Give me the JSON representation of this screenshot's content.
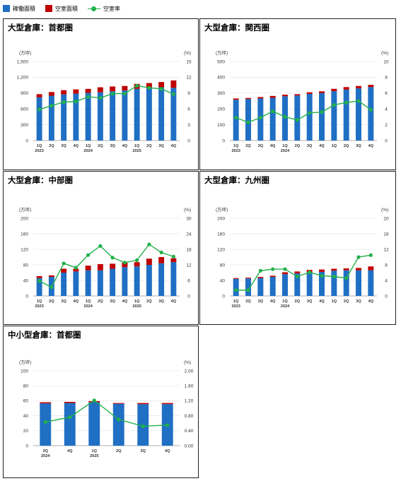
{
  "colors": {
    "occupied": "#1f6fc4",
    "vacant": "#c00000",
    "rate": "#22b04b"
  },
  "legend": {
    "occupied_label": "稼働面積",
    "vacant_label": "空室面積",
    "rate_label": "空室率"
  },
  "chart_data": [
    {
      "type": "bar",
      "title": "大型倉庫：首都圏",
      "ylabel": "(万坪)",
      "y2label": "(%)",
      "ylim": [
        0,
        1500
      ],
      "yticks": [
        "0",
        "300",
        "600",
        "900",
        "1,200",
        "1,500"
      ],
      "y2lim": [
        0,
        15
      ],
      "y2ticks": [
        "0",
        "3",
        "6",
        "9",
        "12",
        "15"
      ],
      "categories": [
        "1Q",
        "2Q",
        "3Q",
        "4Q",
        "1Q",
        "2Q",
        "3Q",
        "4Q",
        "1Q",
        "2Q",
        "3Q",
        "4Q"
      ],
      "year_labels": [
        {
          "index": 0,
          "label": "2023"
        },
        {
          "index": 4,
          "label": "2024"
        },
        {
          "index": 8,
          "label": "2025"
        }
      ],
      "series": [
        {
          "name": "稼働面積",
          "kind": "bar",
          "values": [
            820,
            850,
            875,
            890,
            905,
            915,
            935,
            950,
            980,
            990,
            1010,
            1000
          ]
        },
        {
          "name": "空室面積",
          "kind": "bar",
          "values": [
            60,
            70,
            80,
            80,
            75,
            95,
            90,
            85,
            95,
            100,
            100,
            140
          ]
        },
        {
          "name": "空室率",
          "kind": "line",
          "axis": "right",
          "values": [
            5.9,
            6.6,
            7.3,
            7.4,
            8.3,
            8.1,
            8.9,
            8.9,
            10.4,
            10.0,
            9.8,
            8.8
          ]
        }
      ]
    },
    {
      "type": "bar",
      "title": "大型倉庫：関西圏",
      "ylabel": "(万坪)",
      "y2label": "(%)",
      "ylim": [
        0,
        500
      ],
      "yticks": [
        "0",
        "100",
        "200",
        "300",
        "400",
        "500"
      ],
      "y2lim": [
        0,
        10
      ],
      "y2ticks": [
        "0",
        "2",
        "4",
        "6",
        "8",
        "10"
      ],
      "categories": [
        "1Q",
        "2Q",
        "3Q",
        "4Q",
        "1Q",
        "2Q",
        "3Q",
        "4Q",
        "1Q",
        "2Q",
        "3Q",
        "4Q"
      ],
      "year_labels": [
        {
          "index": 0,
          "label": "2023"
        },
        {
          "index": 4,
          "label": "2024"
        }
      ],
      "series": [
        {
          "name": "稼働面積",
          "kind": "bar",
          "values": [
            258,
            262,
            266,
            270,
            280,
            285,
            295,
            300,
            312,
            322,
            330,
            338
          ]
        },
        {
          "name": "空室面積",
          "kind": "bar",
          "values": [
            8,
            7,
            9,
            12,
            10,
            8,
            10,
            11,
            15,
            16,
            15,
            14
          ]
        },
        {
          "name": "空室率",
          "kind": "line",
          "axis": "right",
          "values": [
            2.9,
            2.3,
            2.9,
            3.7,
            3.0,
            2.6,
            3.5,
            3.6,
            4.5,
            4.8,
            5.0,
            3.9
          ]
        }
      ]
    },
    {
      "type": "bar",
      "title": "大型倉庫：中部圏",
      "ylabel": "(万坪)",
      "y2label": "(%)",
      "ylim": [
        0,
        200
      ],
      "yticks": [
        "0",
        "40",
        "80",
        "120",
        "160",
        "200"
      ],
      "y2lim": [
        0,
        30
      ],
      "y2ticks": [
        "0",
        "6",
        "12",
        "18",
        "24",
        "30"
      ],
      "categories": [
        "1Q",
        "2Q",
        "3Q",
        "4Q",
        "1Q",
        "2Q",
        "3Q",
        "4Q",
        "1Q",
        "2Q",
        "3Q",
        "4Q"
      ],
      "year_labels": [
        {
          "index": 0,
          "label": "2023"
        },
        {
          "index": 4,
          "label": "2024"
        },
        {
          "index": 8,
          "label": "2025"
        }
      ],
      "series": [
        {
          "name": "稼働面積",
          "kind": "bar",
          "values": [
            46,
            49,
            60,
            63,
            66,
            66,
            70,
            74,
            76,
            80,
            84,
            87
          ]
        },
        {
          "name": "空室面積",
          "kind": "bar",
          "values": [
            5,
            4,
            10,
            7,
            12,
            16,
            13,
            12,
            11,
            16,
            16,
            10
          ]
        },
        {
          "name": "空室率",
          "kind": "line",
          "axis": "right",
          "values": [
            5.8,
            3.4,
            12.6,
            10.9,
            15.8,
            19.3,
            14.8,
            12.9,
            13.8,
            19.9,
            16.8,
            15.2
          ]
        }
      ]
    },
    {
      "type": "bar",
      "title": "大型倉庫：九州圏",
      "ylabel": "(万坪)",
      "y2label": "(%)",
      "ylim": [
        0,
        200
      ],
      "yticks": [
        "0",
        "40",
        "80",
        "120",
        "160",
        "200"
      ],
      "y2lim": [
        0,
        20
      ],
      "y2ticks": [
        "0",
        "4",
        "8",
        "12",
        "16",
        "20"
      ],
      "categories": [
        "1Q",
        "2Q",
        "3Q",
        "4Q",
        "1Q",
        "2Q",
        "3Q",
        "4Q",
        "1Q",
        "2Q",
        "3Q",
        "4Q"
      ],
      "year_labels": [
        {
          "index": 0,
          "label": "2023"
        },
        {
          "index": 4,
          "label": "2024"
        }
      ],
      "series": [
        {
          "name": "稼働面積",
          "kind": "bar",
          "values": [
            44,
            45,
            46,
            49,
            56,
            58,
            61,
            62,
            65,
            66,
            66,
            66
          ]
        },
        {
          "name": "空室面積",
          "kind": "bar",
          "values": [
            2,
            2,
            3,
            3,
            5,
            5,
            6,
            6,
            5,
            5,
            6,
            10
          ]
        },
        {
          "name": "空室率",
          "kind": "line",
          "axis": "right",
          "values": [
            1.5,
            1.5,
            6.5,
            6.9,
            6.9,
            5.0,
            6.1,
            5.2,
            5.0,
            4.6,
            10.0,
            10.5
          ]
        }
      ]
    },
    {
      "type": "bar",
      "title": "中小型倉庫：首都圏",
      "ylabel": "(万坪)",
      "y2label": "(%)",
      "ylim": [
        0,
        100
      ],
      "yticks": [
        "0",
        "20",
        "40",
        "60",
        "80",
        "100"
      ],
      "y2lim": [
        0,
        2
      ],
      "y2ticks": [
        "0.00",
        "0.40",
        "0.80",
        "1.20",
        "1.60",
        "2.00"
      ],
      "categories": [
        "3Q",
        "4Q",
        "1Q",
        "2Q",
        "3Q",
        "4Q"
      ],
      "year_labels": [
        {
          "index": 0,
          "label": "2024"
        },
        {
          "index": 2,
          "label": "2025"
        }
      ],
      "series": [
        {
          "name": "稼働面積",
          "kind": "bar",
          "values": [
            56.5,
            57,
            58,
            56,
            55.5,
            55.5
          ]
        },
        {
          "name": "空室面積",
          "kind": "bar",
          "values": [
            1.5,
            1.5,
            1.5,
            1,
            1.5,
            1.5
          ]
        },
        {
          "name": "空室率",
          "kind": "line",
          "axis": "right",
          "values": [
            0.63,
            0.76,
            1.21,
            0.7,
            0.52,
            0.55
          ]
        }
      ]
    }
  ]
}
